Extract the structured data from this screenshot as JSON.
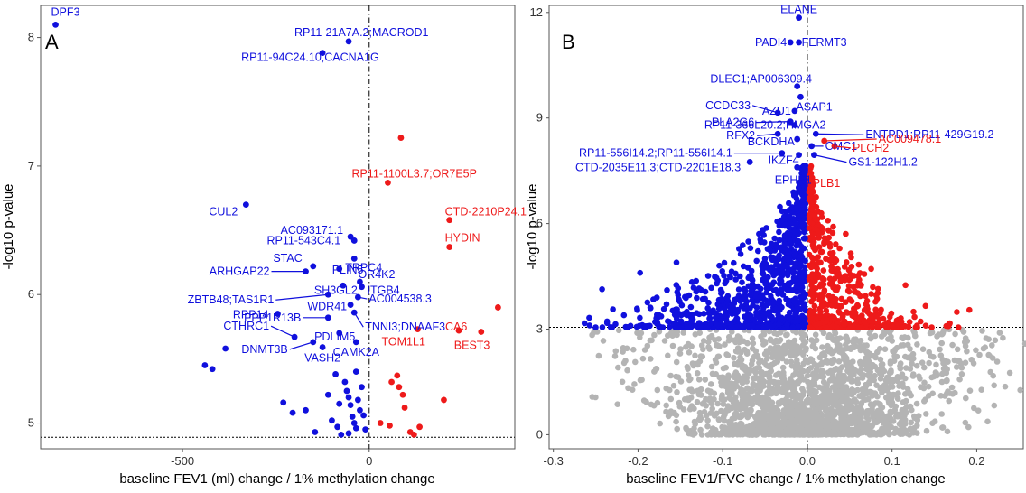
{
  "chart_data": [
    {
      "type": "scatter",
      "panel_label": "A",
      "xlabel": "baseline FEV1 (ml) change / 1% methylation change",
      "ylabel": "-log10 p-value",
      "xlim": [
        -880,
        390
      ],
      "ylim": [
        4.8,
        8.25
      ],
      "x_ticks": [
        -500,
        0
      ],
      "y_ticks": [
        5,
        6,
        7,
        8
      ],
      "threshold_y": 4.89,
      "vline_x": 0,
      "grid": false,
      "colors": {
        "negative": "#1010dd",
        "positive": "#ee1a1a",
        "threshold": "#000000"
      },
      "labeled_points": [
        {
          "label": "DPF3",
          "x": -840,
          "y": 8.1,
          "color": "#1010dd"
        },
        {
          "label": "RP11-21A7A.2;MACROD1",
          "x": -55,
          "y": 7.97,
          "color": "#1010dd"
        },
        {
          "label": "RP11-94C24.10;CACNA1G",
          "x": -125,
          "y": 7.88,
          "color": "#1010dd"
        },
        {
          "label": "CUL2",
          "x": -330,
          "y": 6.7,
          "color": "#1010dd"
        },
        {
          "label": "AC093171.1",
          "x": -50,
          "y": 6.45,
          "color": "#1010dd"
        },
        {
          "label": "RP11-543C4.1",
          "x": -40,
          "y": 6.42,
          "color": "#1010dd"
        },
        {
          "label": "TRPC4",
          "x": -40,
          "y": 6.28,
          "color": "#1010dd"
        },
        {
          "label": "STAC",
          "x": -150,
          "y": 6.22,
          "color": "#1010dd"
        },
        {
          "label": "PLIN5",
          "x": -80,
          "y": 6.2,
          "color": "#1010dd"
        },
        {
          "label": "OR4K2",
          "x": -25,
          "y": 6.1,
          "color": "#1010dd"
        },
        {
          "label": "ARHGAP22",
          "x": -170,
          "y": 6.18,
          "color": "#1010dd"
        },
        {
          "label": "SH3GL2",
          "x": -70,
          "y": 6.07,
          "color": "#1010dd"
        },
        {
          "label": "ITGB4",
          "x": -20,
          "y": 6.06,
          "color": "#1010dd"
        },
        {
          "label": "ZBTB48;TAS1R1",
          "x": -110,
          "y": 6.0,
          "color": "#1010dd"
        },
        {
          "label": "AC004538.3",
          "x": -30,
          "y": 5.98,
          "color": "#1010dd"
        },
        {
          "label": "WDR41",
          "x": -50,
          "y": 5.92,
          "color": "#1010dd"
        },
        {
          "label": "RPP14",
          "x": -245,
          "y": 5.85,
          "color": "#1010dd"
        },
        {
          "label": "PPP1R13B",
          "x": -110,
          "y": 5.82,
          "color": "#1010dd"
        },
        {
          "label": "TNNI3;DNAAF3",
          "x": -40,
          "y": 5.86,
          "color": "#1010dd"
        },
        {
          "label": "CTHRC1",
          "x": -200,
          "y": 5.67,
          "color": "#1010dd"
        },
        {
          "label": "DNMT3B",
          "x": -150,
          "y": 5.63,
          "color": "#1010dd"
        },
        {
          "label": "PDLIM5",
          "x": -80,
          "y": 5.7,
          "color": "#1010dd"
        },
        {
          "label": "VASH2",
          "x": -125,
          "y": 5.59,
          "color": "#1010dd"
        },
        {
          "label": "CAMK2A",
          "x": -35,
          "y": 5.63,
          "color": "#1010dd"
        },
        {
          "label": "RP11-1100L3.7;OR7E5P",
          "x": 50,
          "y": 6.87,
          "color": "#ee1a1a"
        },
        {
          "label": "CTD-2210P24.1",
          "x": 215,
          "y": 6.58,
          "color": "#ee1a1a"
        },
        {
          "label": "HYDIN",
          "x": 215,
          "y": 6.37,
          "color": "#ee1a1a"
        },
        {
          "label": "CA6",
          "x": 240,
          "y": 5.72,
          "color": "#ee1a1a"
        },
        {
          "label": "BEST3",
          "x": 300,
          "y": 5.71,
          "color": "#ee1a1a"
        },
        {
          "label": "TOM1L1",
          "x": 130,
          "y": 5.73,
          "color": "#ee1a1a"
        }
      ],
      "points": [
        {
          "x": -440,
          "y": 5.45,
          "color": "#1010dd"
        },
        {
          "x": -420,
          "y": 5.42,
          "color": "#1010dd"
        },
        {
          "x": -385,
          "y": 5.58,
          "color": "#1010dd"
        },
        {
          "x": -230,
          "y": 5.16,
          "color": "#1010dd"
        },
        {
          "x": -205,
          "y": 5.08,
          "color": "#1010dd"
        },
        {
          "x": -170,
          "y": 5.1,
          "color": "#1010dd"
        },
        {
          "x": -145,
          "y": 4.93,
          "color": "#1010dd"
        },
        {
          "x": -100,
          "y": 5.02,
          "color": "#1010dd"
        },
        {
          "x": -85,
          "y": 4.97,
          "color": "#1010dd"
        },
        {
          "x": -75,
          "y": 4.91,
          "color": "#1010dd"
        },
        {
          "x": -65,
          "y": 5.32,
          "color": "#1010dd"
        },
        {
          "x": -60,
          "y": 5.25,
          "color": "#1010dd"
        },
        {
          "x": -55,
          "y": 5.2,
          "color": "#1010dd"
        },
        {
          "x": -50,
          "y": 5.14,
          "color": "#1010dd"
        },
        {
          "x": -45,
          "y": 5.05,
          "color": "#1010dd"
        },
        {
          "x": -40,
          "y": 5.0,
          "color": "#1010dd"
        },
        {
          "x": -35,
          "y": 4.96,
          "color": "#1010dd"
        },
        {
          "x": -30,
          "y": 5.18,
          "color": "#1010dd"
        },
        {
          "x": -25,
          "y": 5.1,
          "color": "#1010dd"
        },
        {
          "x": -20,
          "y": 5.28,
          "color": "#1010dd"
        },
        {
          "x": -15,
          "y": 5.06,
          "color": "#1010dd"
        },
        {
          "x": -10,
          "y": 4.95,
          "color": "#1010dd"
        },
        {
          "x": -90,
          "y": 5.38,
          "color": "#1010dd"
        },
        {
          "x": -35,
          "y": 5.4,
          "color": "#1010dd"
        },
        {
          "x": -55,
          "y": 4.92,
          "color": "#1010dd"
        },
        {
          "x": -80,
          "y": 5.15,
          "color": "#1010dd"
        },
        {
          "x": -110,
          "y": 5.22,
          "color": "#1010dd"
        },
        {
          "x": 30,
          "y": 5.0,
          "color": "#ee1a1a"
        },
        {
          "x": 55,
          "y": 4.98,
          "color": "#ee1a1a"
        },
        {
          "x": 60,
          "y": 5.32,
          "color": "#ee1a1a"
        },
        {
          "x": 75,
          "y": 5.37,
          "color": "#ee1a1a"
        },
        {
          "x": 80,
          "y": 5.28,
          "color": "#ee1a1a"
        },
        {
          "x": 90,
          "y": 5.22,
          "color": "#ee1a1a"
        },
        {
          "x": 95,
          "y": 5.12,
          "color": "#ee1a1a"
        },
        {
          "x": 110,
          "y": 4.93,
          "color": "#ee1a1a"
        },
        {
          "x": 120,
          "y": 4.91,
          "color": "#ee1a1a"
        },
        {
          "x": 135,
          "y": 4.97,
          "color": "#ee1a1a"
        },
        {
          "x": 200,
          "y": 5.18,
          "color": "#ee1a1a"
        },
        {
          "x": 345,
          "y": 5.9,
          "color": "#ee1a1a"
        },
        {
          "x": 85,
          "y": 7.22,
          "color": "#ee1a1a"
        }
      ]
    },
    {
      "type": "scatter",
      "panel_label": "B",
      "xlabel": "baseline FEV1/FVC change / 1% methylation change",
      "ylabel": "-log10 p-value",
      "xlim": [
        -0.305,
        0.255
      ],
      "ylim": [
        -0.4,
        12.2
      ],
      "x_ticks": [
        -0.3,
        -0.2,
        -0.1,
        0.0,
        0.1,
        0.2
      ],
      "x_tick_labels": [
        "-0.3",
        "-0.2",
        "-0.1",
        "0.0",
        "0.1",
        "0.2"
      ],
      "y_ticks": [
        0,
        3,
        6,
        9,
        12
      ],
      "threshold_y": 3.05,
      "vline_x": 0,
      "grid": false,
      "colors": {
        "negative": "#1010dd",
        "positive": "#ee1a1a",
        "nonsignificant": "#b4b4b4"
      },
      "labeled_points": [
        {
          "label": "ELANE",
          "x": -0.01,
          "y": 11.85,
          "color": "#1010dd"
        },
        {
          "label": "PADI4",
          "x": -0.02,
          "y": 11.15,
          "color": "#1010dd"
        },
        {
          "label": "FERMT3",
          "x": -0.01,
          "y": 11.15,
          "color": "#1010dd"
        },
        {
          "label": "DLEC1;AP006309.4",
          "x": -0.012,
          "y": 9.9,
          "color": "#1010dd"
        },
        {
          "label": "AZU1",
          "x": -0.015,
          "y": 9.2,
          "color": "#1010dd"
        },
        {
          "label": "ASAP1",
          "x": -0.008,
          "y": 9.6,
          "color": "#1010dd"
        },
        {
          "label": "CCDC33",
          "x": -0.035,
          "y": 9.15,
          "color": "#1010dd"
        },
        {
          "label": "ENTPD1;RP11-429G19.2",
          "x": 0.01,
          "y": 8.55,
          "color": "#1010dd"
        },
        {
          "label": "PLA2G6",
          "x": -0.02,
          "y": 8.9,
          "color": "#1010dd"
        },
        {
          "label": "RP11-366L20.2;HMGA2",
          "x": -0.015,
          "y": 8.8,
          "color": "#1010dd"
        },
        {
          "label": "AC009478.1",
          "x": 0.02,
          "y": 8.35,
          "color": "#ee1a1a"
        },
        {
          "label": "RFX2",
          "x": -0.035,
          "y": 8.55,
          "color": "#1010dd"
        },
        {
          "label": "BCKDHA",
          "x": -0.012,
          "y": 8.4,
          "color": "#1010dd"
        },
        {
          "label": "CMC1",
          "x": 0.005,
          "y": 8.2,
          "color": "#1010dd"
        },
        {
          "label": "PLCH2",
          "x": 0.032,
          "y": 8.2,
          "color": "#ee1a1a"
        },
        {
          "label": "RP11-556I14.2;RP11-556I14.1",
          "x": -0.03,
          "y": 8.0,
          "color": "#1010dd"
        },
        {
          "label": "IKZF4",
          "x": -0.01,
          "y": 7.95,
          "color": "#1010dd"
        },
        {
          "label": "GS1-122H1.2",
          "x": 0.008,
          "y": 7.95,
          "color": "#1010dd"
        },
        {
          "label": "CTD-2035E11.3;CTD-2201E18.3",
          "x": -0.068,
          "y": 7.75,
          "color": "#1010dd"
        },
        {
          "label": "EPHB1",
          "x": -0.012,
          "y": 7.6,
          "color": "#1010dd"
        },
        {
          "label": "PLB1",
          "x": 0.003,
          "y": 7.35,
          "color": "#ee1a1a"
        }
      ]
    }
  ]
}
